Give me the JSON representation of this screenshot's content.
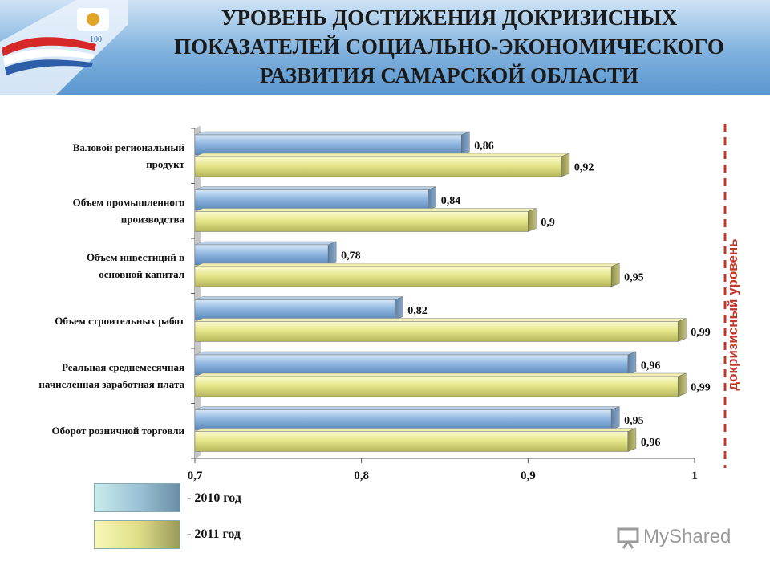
{
  "header": {
    "title_lines": [
      "УРОВЕНЬ ДОСТИЖЕНИЯ ДОКРИЗИСНЫХ",
      "ПОКАЗАТЕЛЕЙ СОЦИАЛЬНО-ЭКОНОМИЧЕСКОГО",
      "РАЗВИТИЯ САМАРСКОЙ ОБЛАСТИ"
    ]
  },
  "chart_data": {
    "type": "bar",
    "orientation": "horizontal",
    "categories": [
      [
        "Валовой региональный",
        "продукт"
      ],
      [
        "Объем промышленного",
        "производства"
      ],
      [
        "Объем инвестиций в",
        "основной капитал"
      ],
      [
        "Объем строительных работ"
      ],
      [
        "Реальная среднемесячная",
        "начисленная заработная плата"
      ],
      [
        "Оборот розничной торговли"
      ]
    ],
    "series": [
      {
        "name": "- 2010 год",
        "values": [
          0.86,
          0.84,
          0.78,
          0.82,
          0.96,
          0.95
        ],
        "labels": [
          "0,86",
          "0,84",
          "0,78",
          "0,82",
          "0,96",
          "0,95"
        ]
      },
      {
        "name": "- 2011 год",
        "values": [
          0.92,
          0.9,
          0.95,
          0.99,
          0.99,
          0.96
        ],
        "labels": [
          "0,92",
          "0,9",
          "0,95",
          "0,99",
          "0,99",
          "0,96"
        ]
      }
    ],
    "xlim": [
      0.7,
      1.0
    ],
    "x_ticks": [
      0.7,
      0.8,
      0.9,
      1.0
    ],
    "x_tick_labels": [
      "0,7",
      "0,8",
      "0,9",
      "1"
    ],
    "reference_line": {
      "value": 1.0,
      "label": "докризисный уровень",
      "color": "#c0392b"
    },
    "legend_position": "bottom-left",
    "colors": {
      "2010": "#8fb6e0",
      "2011": "#e6e68a"
    }
  },
  "legend": {
    "items": [
      {
        "label": "- 2010 год"
      },
      {
        "label": "- 2011 год"
      }
    ]
  },
  "watermark": {
    "text": "MyShared"
  },
  "colors": {
    "accent": "#c0392b",
    "header": "#7fb1de"
  }
}
